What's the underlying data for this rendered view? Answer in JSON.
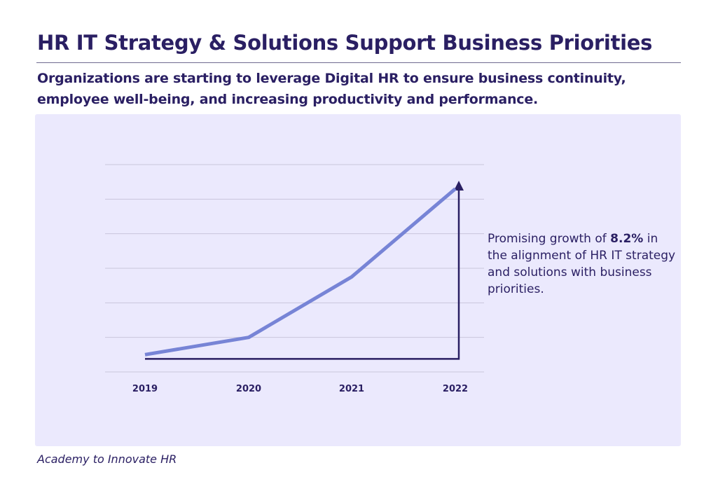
{
  "title": "HR IT Strategy & Solutions Support Business Priorities",
  "subtitle": "Organizations are starting to leverage Digital HR to ensure business continuity, employee well-being, and increasing productivity and performance.",
  "annotation": {
    "before": "Promising growth of ",
    "highlight": "8.2%",
    "after": " in the alignment of HR IT strategy and solutions with business priorities."
  },
  "source": "Academy to Innovate HR",
  "colors": {
    "line": "#7784d6",
    "arrow": "#2a1f63",
    "grid": "#c9c6dc",
    "panel": "#ebe9fd",
    "text": "#2a1f63"
  },
  "chart_data": {
    "type": "line",
    "categories": [
      "2019",
      "2020",
      "2021",
      "2022"
    ],
    "values": [
      1,
      2,
      5.5,
      10.6
    ],
    "ylim": [
      0,
      12
    ],
    "y_ticks_labeled": false,
    "grid": "horizontal",
    "legend": "none"
  }
}
